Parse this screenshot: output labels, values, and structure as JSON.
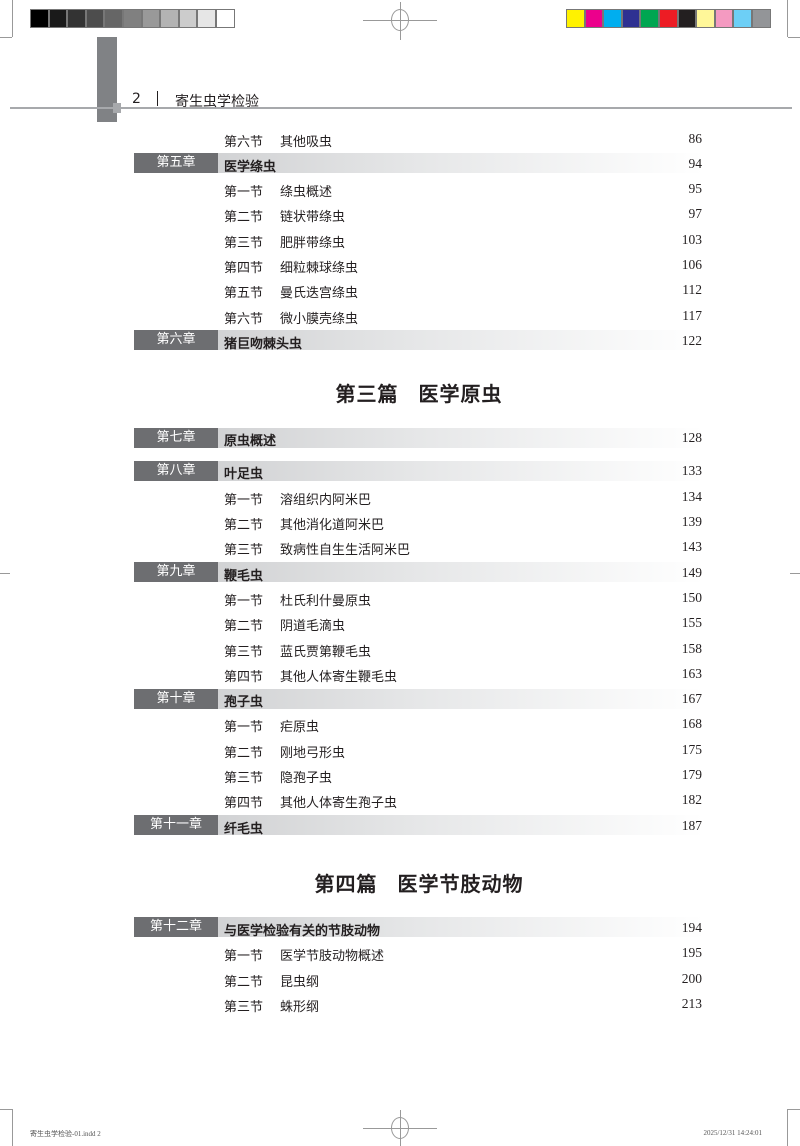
{
  "header": {
    "page_number": "2",
    "book_title": "寄生虫学检验"
  },
  "colors": {
    "chapter_label_bg": "#6d6e71",
    "chapter_bar_start": "#c9cacc",
    "grayscale": [
      "#000000",
      "#1a1a1a",
      "#333333",
      "#4d4d4d",
      "#666666",
      "#808080",
      "#999999",
      "#b3b3b3",
      "#cccccc",
      "#e6e6e6",
      "#ffffff"
    ],
    "process": [
      "#fff200",
      "#ec008c",
      "#00aeef",
      "#2e3192",
      "#00a651",
      "#ed1c24",
      "#231f20",
      "#fff799",
      "#f49ac1",
      "#6dcff6",
      "#939598"
    ]
  },
  "toc": [
    {
      "type": "section",
      "label": "第六节",
      "title": "其他吸虫",
      "page": "86"
    },
    {
      "type": "chapter",
      "label": "第五章",
      "title": "医学绦虫",
      "page": "94"
    },
    {
      "type": "section",
      "label": "第一节",
      "title": "绦虫概述",
      "page": "95"
    },
    {
      "type": "section",
      "label": "第二节",
      "title": "链状带绦虫",
      "page": "97"
    },
    {
      "type": "section",
      "label": "第三节",
      "title": "肥胖带绦虫",
      "page": "103"
    },
    {
      "type": "section",
      "label": "第四节",
      "title": "细粒棘球绦虫",
      "page": "106"
    },
    {
      "type": "section",
      "label": "第五节",
      "title": "曼氏迭宫绦虫",
      "page": "112"
    },
    {
      "type": "section",
      "label": "第六节",
      "title": "微小膜壳绦虫",
      "page": "117"
    },
    {
      "type": "chapter",
      "label": "第六章",
      "title": "猪巨吻棘头虫",
      "page": "122"
    },
    {
      "type": "part",
      "title": "第三篇 医学原虫"
    },
    {
      "type": "chapter",
      "label": "第七章",
      "title": "原虫概述",
      "page": "128"
    },
    {
      "type": "chapter",
      "label": "第八章",
      "title": "叶足虫",
      "page": "133",
      "gap": true
    },
    {
      "type": "section",
      "label": "第一节",
      "title": "溶组织内阿米巴",
      "page": "134"
    },
    {
      "type": "section",
      "label": "第二节",
      "title": "其他消化道阿米巴",
      "page": "139"
    },
    {
      "type": "section",
      "label": "第三节",
      "title": "致病性自生生活阿米巴",
      "page": "143"
    },
    {
      "type": "chapter",
      "label": "第九章",
      "title": "鞭毛虫",
      "page": "149"
    },
    {
      "type": "section",
      "label": "第一节",
      "title": "杜氏利什曼原虫",
      "page": "150"
    },
    {
      "type": "section",
      "label": "第二节",
      "title": "阴道毛滴虫",
      "page": "155"
    },
    {
      "type": "section",
      "label": "第三节",
      "title": "蓝氏贾第鞭毛虫",
      "page": "158"
    },
    {
      "type": "section",
      "label": "第四节",
      "title": "其他人体寄生鞭毛虫",
      "page": "163"
    },
    {
      "type": "chapter",
      "label": "第十章",
      "title": "孢子虫",
      "page": "167"
    },
    {
      "type": "section",
      "label": "第一节",
      "title": "疟原虫",
      "page": "168"
    },
    {
      "type": "section",
      "label": "第二节",
      "title": "刚地弓形虫",
      "page": "175"
    },
    {
      "type": "section",
      "label": "第三节",
      "title": "隐孢子虫",
      "page": "179"
    },
    {
      "type": "section",
      "label": "第四节",
      "title": "其他人体寄生孢子虫",
      "page": "182"
    },
    {
      "type": "chapter",
      "label": "第十一章",
      "title": "纤毛虫",
      "page": "187"
    },
    {
      "type": "part",
      "title": "第四篇 医学节肢动物",
      "p4": true
    },
    {
      "type": "chapter",
      "label": "第十二章",
      "title": "与医学检验有关的节肢动物",
      "page": "194"
    },
    {
      "type": "section",
      "label": "第一节",
      "title": "医学节肢动物概述",
      "page": "195"
    },
    {
      "type": "section",
      "label": "第二节",
      "title": "昆虫纲",
      "page": "200"
    },
    {
      "type": "section",
      "label": "第三节",
      "title": "蛛形纲",
      "page": "213"
    }
  ],
  "footer": {
    "file": "寄生虫学检验-01.indd 2",
    "timestamp": "2025/12/31 14:24:01"
  }
}
